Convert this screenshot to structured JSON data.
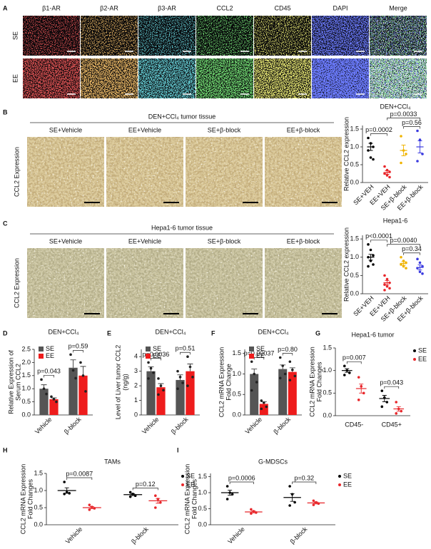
{
  "figure": {
    "panel_a": {
      "letter": "A",
      "columns": [
        "β1-AR",
        "β2-AR",
        "β3-AR",
        "CCL2",
        "CD45",
        "DAPI",
        "Merge"
      ],
      "rows": [
        "SE",
        "EE"
      ]
    },
    "panel_b": {
      "letter": "B",
      "title": "DEN+CCl₄ tumor tissue",
      "columns": [
        "SE+Vehicle",
        "EE+Vehicle",
        "SE+β-block",
        "EE+β-block"
      ],
      "ylabel": "CCL2 Expression"
    },
    "panel_c": {
      "letter": "C",
      "title": "Hepa1-6  tumor  tissue",
      "columns": [
        "SE+Vehicle",
        "EE+Vehicle",
        "SE+β-block",
        "EE+β-block"
      ],
      "ylabel": "CCL2 Expression"
    },
    "letters": [
      "D",
      "E",
      "F",
      "G",
      "H",
      "I"
    ]
  },
  "chart_data": [
    {
      "type": "dot",
      "title": "DEN+CCl₄",
      "ylabel": [
        "Relative CCL2 expression"
      ],
      "categories": [
        "SE+VEH",
        "EE+VEH",
        "SE+β-block",
        "EE+β-block"
      ],
      "ylim": [
        0,
        1.6
      ],
      "yticks": [
        {
          "value": 0,
          "label": "0.0"
        },
        {
          "value": 0.5,
          "label": "0.5"
        },
        {
          "value": 1,
          "label": "1.0"
        },
        {
          "value": 1.5,
          "label": "1.5"
        }
      ],
      "series": [
        {
          "colors": [
            "#000000",
            "#e8262a",
            "#f0b400",
            "#3a3adf"
          ],
          "points": [
            [
              1.25,
              1.1,
              1.0,
              0.9,
              0.7,
              0.65
            ],
            [
              0.45,
              0.35,
              0.3,
              0.25,
              0.2,
              0.15
            ],
            [
              1.3,
              0.9,
              0.8,
              0.55
            ],
            [
              1.45,
              1.2,
              0.8,
              0.6
            ]
          ],
          "mean": [
            1.0,
            0.28,
            0.9,
            1.0
          ],
          "sem": [
            0.1,
            0.05,
            0.15,
            0.17
          ]
        }
      ],
      "comparisons": [
        {
          "span": [
            0,
            1
          ],
          "label": "p=0.0002"
        },
        {
          "span": [
            1,
            3
          ],
          "label": "p=0.0033"
        },
        {
          "span": [
            2,
            3
          ],
          "label": "p=0.56"
        }
      ]
    },
    {
      "type": "dot",
      "title": "Hepa1-6",
      "ylabel": [
        "Relative CCL2 expression"
      ],
      "categories": [
        "SE+VEH",
        "EE+VEH",
        "SE+β-block",
        "EE+β-block"
      ],
      "ylim": [
        0,
        1.6
      ],
      "yticks": [
        {
          "value": 0,
          "label": "0.0"
        },
        {
          "value": 0.5,
          "label": "0.5"
        },
        {
          "value": 1,
          "label": "1.0"
        },
        {
          "value": 1.5,
          "label": "1.5"
        }
      ],
      "series": [
        {
          "colors": [
            "#000000",
            "#e8262a",
            "#f0b400",
            "#3a3adf"
          ],
          "points": [
            [
              1.35,
              1.2,
              1.05,
              1.0,
              0.9,
              0.8,
              0.75
            ],
            [
              0.5,
              0.4,
              0.3,
              0.25,
              0.2,
              0.15,
              0.1
            ],
            [
              1.0,
              0.9,
              0.85,
              0.8,
              0.75,
              0.7
            ],
            [
              0.95,
              0.85,
              0.75,
              0.7,
              0.6,
              0.55
            ]
          ],
          "mean": [
            1.0,
            0.3,
            0.83,
            0.72
          ],
          "sem": [
            0.08,
            0.06,
            0.05,
            0.07
          ]
        }
      ],
      "comparisons": [
        {
          "span": [
            0,
            1
          ],
          "label": "p<0.0001"
        },
        {
          "span": [
            1,
            3
          ],
          "label": "p=0.0040"
        },
        {
          "span": [
            2,
            3
          ],
          "label": "p=0.34"
        }
      ]
    },
    {
      "type": "bar",
      "title": "DEN+CCl₄",
      "ylabel": [
        "Relative Expression of",
        "Serum CCL2"
      ],
      "categories": [
        "Vehicle",
        "β-block"
      ],
      "legend": "upper left",
      "ylim": [
        0,
        2.5
      ],
      "yticks": [
        {
          "value": 0,
          "label": "0.0"
        },
        {
          "value": 0.5,
          "label": "0.5"
        },
        {
          "value": 1,
          "label": "1.0"
        },
        {
          "value": 1.5,
          "label": "1.5"
        },
        {
          "value": 2,
          "label": "2.0"
        },
        {
          "value": 2.5,
          "label": "2.5"
        }
      ],
      "series": [
        {
          "name": "SE",
          "color": "#555555",
          "values": [
            1.0,
            1.8
          ],
          "errors": [
            0.15,
            0.3
          ],
          "points": [
            [
              1.35,
              1.0,
              0.8
            ],
            [
              2.3,
              1.7,
              1.4
            ]
          ]
        },
        {
          "name": "EE",
          "color": "#ee1c1c",
          "values": [
            0.6,
            1.5
          ],
          "errors": [
            0.05,
            0.35
          ],
          "points": [
            [
              0.7,
              0.6,
              0.5
            ],
            [
              2.0,
              1.5,
              0.9
            ]
          ]
        }
      ],
      "comparisons": [
        {
          "category": 0,
          "label": "p=0.043"
        },
        {
          "category": 1,
          "label": "p=0.59"
        }
      ]
    },
    {
      "type": "bar",
      "title": "DEN+CCl₄",
      "ylabel": [
        "Level of Liver tumor CCL2",
        "(ng/g)"
      ],
      "categories": [
        "Vehicle",
        "β-block"
      ],
      "legend": "upper left",
      "ylim": [
        0,
        4.5
      ],
      "yticks": [
        0,
        1,
        2,
        3,
        4
      ],
      "series": [
        {
          "name": "SE",
          "color": "#555555",
          "values": [
            3.0,
            2.4
          ],
          "errors": [
            0.3,
            0.35
          ],
          "points": [
            [
              3.6,
              3.2,
              2.9,
              2.5
            ],
            [
              3.0,
              2.6,
              2.2,
              1.8
            ]
          ]
        },
        {
          "name": "EE",
          "color": "#ee1c1c",
          "values": [
            1.9,
            3.0
          ],
          "errors": [
            0.25,
            0.5
          ],
          "points": [
            [
              2.5,
              2.0,
              1.7,
              1.4
            ],
            [
              4.0,
              3.3,
              2.6,
              2.0
            ]
          ]
        }
      ],
      "comparisons": [
        {
          "category": 0,
          "label": "p=0.0036"
        },
        {
          "category": 1,
          "label": "p=0.51"
        }
      ]
    },
    {
      "type": "bar",
      "title": "DEN+CCl₄",
      "ylabel": [
        "CCL2 mRNA Expression",
        "Fold Change"
      ],
      "categories": [
        "Vehicle",
        "β-block"
      ],
      "legend": "upper left",
      "ylim": [
        0,
        1.6
      ],
      "yticks": [
        {
          "value": 0,
          "label": "0.0"
        },
        {
          "value": 0.5,
          "label": "0.5"
        },
        {
          "value": 1,
          "label": "1.0"
        },
        {
          "value": 1.5,
          "label": "1.5"
        }
      ],
      "series": [
        {
          "name": "SE",
          "color": "#555555",
          "values": [
            1.0,
            1.12
          ],
          "errors": [
            0.12,
            0.1
          ],
          "points": [
            [
              1.3,
              1.0,
              0.8,
              0.6
            ],
            [
              1.4,
              1.2,
              1.0,
              0.9
            ]
          ]
        },
        {
          "name": "EE",
          "color": "#ee1c1c",
          "values": [
            0.27,
            1.05
          ],
          "errors": [
            0.05,
            0.1
          ],
          "points": [
            [
              0.35,
              0.3,
              0.2,
              0.15
            ],
            [
              1.3,
              1.1,
              0.95,
              0.85
            ]
          ]
        }
      ],
      "comparisons": [
        {
          "category": 0,
          "label": "p=0.00037"
        },
        {
          "category": 1,
          "label": "p=0.80"
        }
      ]
    },
    {
      "type": "dot",
      "title": "Hepa1-6 tumor",
      "ylabel": [
        "CCL2 mRNA Expression",
        "Fold Changes"
      ],
      "categories": [
        "CD45-",
        "CD45+"
      ],
      "legend": "right",
      "ylim": [
        0,
        1.5
      ],
      "yticks": [
        {
          "value": 0,
          "label": "0.0"
        },
        {
          "value": 0.5,
          "label": "0.5"
        },
        {
          "value": 1,
          "label": "1.0"
        },
        {
          "value": 1.5,
          "label": "1.5"
        }
      ],
      "series": [
        {
          "name": "SE",
          "color": "#000000",
          "points": [
            [
              1.1,
              1.0,
              0.95,
              0.9
            ],
            [
              0.55,
              0.4,
              0.3,
              0.2
            ]
          ],
          "mean": [
            1.0,
            0.38
          ],
          "sem": [
            0.04,
            0.07
          ]
        },
        {
          "name": "EE",
          "color": "#e8262a",
          "points": [
            [
              0.85,
              0.65,
              0.5,
              0.35
            ],
            [
              0.3,
              0.15,
              0.1,
              0.05
            ]
          ],
          "mean": [
            0.6,
            0.15
          ],
          "sem": [
            0.1,
            0.05
          ]
        }
      ],
      "comparisons": [
        {
          "category": 0,
          "label": "p=0.007"
        },
        {
          "category": 1,
          "label": "p=0.043"
        }
      ]
    },
    {
      "type": "dot",
      "title": "TAMs",
      "ylabel": [
        "CCL2 mRNA Expression",
        "Fold Changes"
      ],
      "categories": [
        "Vehicle",
        "β-block"
      ],
      "legend": "right",
      "ylim": [
        0,
        1.5
      ],
      "yticks": [
        {
          "value": 0,
          "label": "0.0"
        },
        {
          "value": 0.5,
          "label": "0.5"
        },
        {
          "value": 1,
          "label": "1.0"
        },
        {
          "value": 1.5,
          "label": "1.5"
        }
      ],
      "series": [
        {
          "name": "SE",
          "color": "#000000",
          "points": [
            [
              1.25,
              0.95,
              0.92,
              0.9
            ],
            [
              0.95,
              0.9,
              0.85,
              0.82
            ]
          ],
          "mean": [
            1.0,
            0.88
          ],
          "sem": [
            0.08,
            0.03
          ]
        },
        {
          "name": "EE",
          "color": "#e8262a",
          "points": [
            [
              0.58,
              0.52,
              0.48,
              0.44
            ],
            [
              0.85,
              0.75,
              0.65,
              0.5
            ]
          ],
          "mean": [
            0.5,
            0.7
          ],
          "sem": [
            0.03,
            0.07
          ]
        }
      ],
      "comparisons": [
        {
          "category": 0,
          "label": "p=0.0087"
        },
        {
          "category": 1,
          "label": "p=0.12"
        }
      ]
    },
    {
      "type": "dot",
      "title": "G-MDSCs",
      "ylabel": [
        "CCL2 mRNA Expression",
        "Fold Changes"
      ],
      "categories": [
        "Vehicle",
        "β-block"
      ],
      "legend": "right",
      "ylim": [
        0,
        1.6
      ],
      "yticks": [
        {
          "value": 0,
          "label": "0.0"
        },
        {
          "value": 0.5,
          "label": "0.5"
        },
        {
          "value": 1,
          "label": "1.0"
        },
        {
          "value": 1.5,
          "label": "1.5"
        }
      ],
      "series": [
        {
          "name": "SE",
          "color": "#000000",
          "points": [
            [
              1.2,
              1.0,
              0.95,
              0.8
            ],
            [
              1.2,
              0.95,
              0.7,
              0.6
            ]
          ],
          "mean": [
            1.0,
            0.85
          ],
          "sem": [
            0.08,
            0.12
          ]
        },
        {
          "name": "EE",
          "color": "#e8262a",
          "points": [
            [
              0.48,
              0.42,
              0.38,
              0.35
            ],
            [
              0.75,
              0.7,
              0.66,
              0.62
            ]
          ],
          "mean": [
            0.4,
            0.68
          ],
          "sem": [
            0.03,
            0.03
          ]
        }
      ],
      "comparisons": [
        {
          "category": 0,
          "label": "p=0.0006"
        },
        {
          "category": 1,
          "label": "p=0.32"
        }
      ]
    }
  ]
}
